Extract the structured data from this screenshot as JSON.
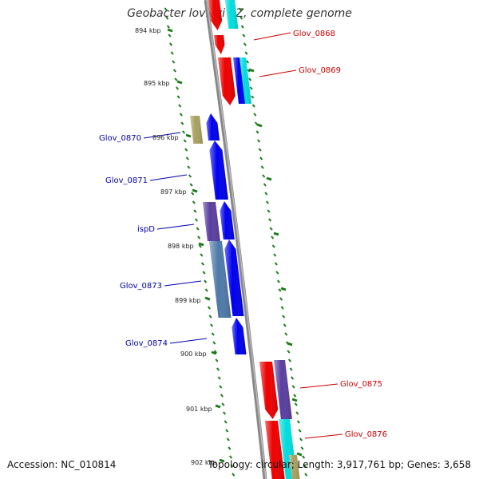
{
  "title": "Geobacter lovleyi SZ, complete genome",
  "accession": "Accession: NC_010814",
  "summary": "Topology: circular; Length: 3,917,761 bp; Genes: 3,658",
  "scale_labels": [
    "894 kbp",
    "895 kbp",
    "896 kbp",
    "897 kbp",
    "898 kbp",
    "899 kbp",
    "900 kbp",
    "901 kbp",
    "902 kbp"
  ],
  "genes": [
    {
      "name": "Glov_0868",
      "strand": "reverse"
    },
    {
      "name": "Glov_0869",
      "strand": "reverse"
    },
    {
      "name": "Glov_0870",
      "strand": "forward"
    },
    {
      "name": "Glov_0871",
      "strand": "forward"
    },
    {
      "name": "ispD",
      "strand": "forward"
    },
    {
      "name": "Glov_0873",
      "strand": "forward"
    },
    {
      "name": "Glov_0874",
      "strand": "forward"
    },
    {
      "name": "Glov_0875",
      "strand": "reverse"
    },
    {
      "name": "Glov_0876",
      "strand": "reverse"
    }
  ],
  "colors": {
    "forward_gene": "#0000ee",
    "forward_label": "#0000aa",
    "reverse_gene": "#ee0000",
    "reverse_label": "#cc0000",
    "cyan_feature": "#00dddd",
    "purple_feature": "#5a3fa0",
    "steel_feature": "#4f7aa8",
    "olive_feature": "#a9a060",
    "backbone": "#888888",
    "tick": "#1a7a1a"
  }
}
